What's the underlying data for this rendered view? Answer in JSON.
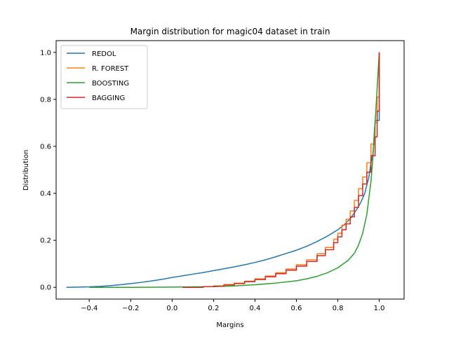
{
  "chart_data": {
    "type": "line",
    "title": "Margin distribution for magic04 dataset in train",
    "xlabel": "Margins",
    "ylabel": "Distribution",
    "xlim": [
      -0.56,
      1.12
    ],
    "ylim": [
      -0.05,
      1.05
    ],
    "x_ticks": [
      "−0.4",
      "−0.2",
      "0.0",
      "0.2",
      "0.4",
      "0.6",
      "0.8",
      "1.0"
    ],
    "y_ticks": [
      "0.0",
      "0.2",
      "0.4",
      "0.6",
      "0.8",
      "1.0"
    ],
    "legend_position": "top-left",
    "grid": false,
    "series": [
      {
        "name": "REDOL",
        "color": "#1f77b4",
        "step": false,
        "points": [
          [
            -0.51,
            0.0
          ],
          [
            -0.45,
            0.001
          ],
          [
            -0.4,
            0.002
          ],
          [
            -0.35,
            0.004
          ],
          [
            -0.3,
            0.007
          ],
          [
            -0.25,
            0.011
          ],
          [
            -0.2,
            0.016
          ],
          [
            -0.15,
            0.021
          ],
          [
            -0.1,
            0.027
          ],
          [
            -0.05,
            0.034
          ],
          [
            0.0,
            0.042
          ],
          [
            0.05,
            0.049
          ],
          [
            0.1,
            0.056
          ],
          [
            0.15,
            0.063
          ],
          [
            0.2,
            0.071
          ],
          [
            0.25,
            0.079
          ],
          [
            0.3,
            0.087
          ],
          [
            0.35,
            0.096
          ],
          [
            0.4,
            0.106
          ],
          [
            0.45,
            0.117
          ],
          [
            0.5,
            0.13
          ],
          [
            0.55,
            0.144
          ],
          [
            0.6,
            0.158
          ],
          [
            0.65,
            0.175
          ],
          [
            0.7,
            0.195
          ],
          [
            0.75,
            0.218
          ],
          [
            0.8,
            0.245
          ],
          [
            0.83,
            0.266
          ],
          [
            0.86,
            0.292
          ],
          [
            0.89,
            0.33
          ],
          [
            0.91,
            0.36
          ],
          [
            0.93,
            0.4
          ],
          [
            0.95,
            0.47
          ],
          [
            0.96,
            0.53
          ],
          [
            0.97,
            0.57
          ],
          [
            0.98,
            0.71
          ],
          [
            0.99,
            0.71
          ],
          [
            1.0,
            0.71
          ],
          [
            1.0,
            1.0
          ]
        ]
      },
      {
        "name": "R. FOREST",
        "color": "#ff7f0e",
        "step": true,
        "points": [
          [
            0.05,
            0.0
          ],
          [
            0.15,
            0.003
          ],
          [
            0.2,
            0.006
          ],
          [
            0.25,
            0.012
          ],
          [
            0.3,
            0.018
          ],
          [
            0.35,
            0.026
          ],
          [
            0.4,
            0.036
          ],
          [
            0.45,
            0.048
          ],
          [
            0.5,
            0.062
          ],
          [
            0.55,
            0.078
          ],
          [
            0.6,
            0.096
          ],
          [
            0.65,
            0.117
          ],
          [
            0.7,
            0.143
          ],
          [
            0.74,
            0.17
          ],
          [
            0.78,
            0.205
          ],
          [
            0.8,
            0.23
          ],
          [
            0.82,
            0.265
          ],
          [
            0.84,
            0.29
          ],
          [
            0.86,
            0.325
          ],
          [
            0.88,
            0.37
          ],
          [
            0.9,
            0.42
          ],
          [
            0.92,
            0.47
          ],
          [
            0.94,
            0.53
          ],
          [
            0.96,
            0.61
          ],
          [
            0.98,
            0.7
          ],
          [
            0.99,
            0.81
          ],
          [
            1.0,
            1.0
          ]
        ]
      },
      {
        "name": "BOOSTING",
        "color": "#2ca02c",
        "step": false,
        "points": [
          [
            -0.4,
            0.0
          ],
          [
            -0.2,
            0.0
          ],
          [
            0.0,
            0.001
          ],
          [
            0.2,
            0.003
          ],
          [
            0.3,
            0.006
          ],
          [
            0.4,
            0.011
          ],
          [
            0.5,
            0.018
          ],
          [
            0.6,
            0.028
          ],
          [
            0.65,
            0.036
          ],
          [
            0.7,
            0.047
          ],
          [
            0.75,
            0.062
          ],
          [
            0.8,
            0.083
          ],
          [
            0.85,
            0.115
          ],
          [
            0.88,
            0.145
          ],
          [
            0.9,
            0.18
          ],
          [
            0.92,
            0.23
          ],
          [
            0.94,
            0.31
          ],
          [
            0.96,
            0.45
          ],
          [
            0.97,
            0.56
          ],
          [
            0.98,
            0.7
          ],
          [
            0.99,
            0.85
          ],
          [
            1.0,
            1.0
          ]
        ]
      },
      {
        "name": "BAGGING",
        "color": "#d62728",
        "step": true,
        "points": [
          [
            0.05,
            0.0
          ],
          [
            0.15,
            0.003
          ],
          [
            0.2,
            0.005
          ],
          [
            0.25,
            0.01
          ],
          [
            0.3,
            0.016
          ],
          [
            0.35,
            0.024
          ],
          [
            0.4,
            0.033
          ],
          [
            0.45,
            0.045
          ],
          [
            0.5,
            0.058
          ],
          [
            0.55,
            0.073
          ],
          [
            0.6,
            0.09
          ],
          [
            0.65,
            0.11
          ],
          [
            0.7,
            0.135
          ],
          [
            0.74,
            0.16
          ],
          [
            0.78,
            0.19
          ],
          [
            0.8,
            0.215
          ],
          [
            0.82,
            0.245
          ],
          [
            0.84,
            0.27
          ],
          [
            0.86,
            0.3
          ],
          [
            0.88,
            0.34
          ],
          [
            0.9,
            0.39
          ],
          [
            0.92,
            0.44
          ],
          [
            0.94,
            0.49
          ],
          [
            0.96,
            0.56
          ],
          [
            0.98,
            0.64
          ],
          [
            0.99,
            0.75
          ],
          [
            1.0,
            1.0
          ]
        ]
      }
    ]
  }
}
